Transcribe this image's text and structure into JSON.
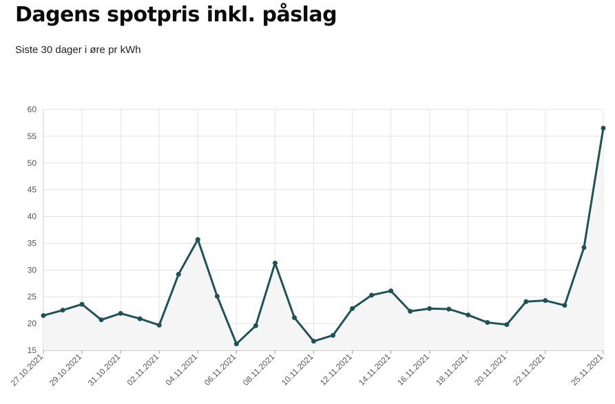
{
  "header": {
    "title": "Dagens spotpris inkl. påslag",
    "subtitle": "Siste 30 dager i øre pr kWh"
  },
  "colors": {
    "line": "#1f5257",
    "area": "#f5f5f5",
    "grid": "#e3e3e3"
  },
  "chart_data": {
    "type": "area",
    "title": "",
    "xlabel": "",
    "ylabel": "",
    "ylim": [
      15,
      60
    ],
    "yticks": [
      15,
      20,
      25,
      30,
      35,
      40,
      45,
      50,
      55,
      60
    ],
    "grid": true,
    "legend": "none",
    "x": [
      "27.10.2021",
      "28.10.2021",
      "29.10.2021",
      "30.10.2021",
      "31.10.2021",
      "01.11.2021",
      "02.11.2021",
      "03.11.2021",
      "04.11.2021",
      "05.11.2021",
      "06.11.2021",
      "07.11.2021",
      "08.11.2021",
      "09.11.2021",
      "10.11.2021",
      "11.11.2021",
      "12.11.2021",
      "13.11.2021",
      "14.11.2021",
      "15.11.2021",
      "16.11.2021",
      "17.11.2021",
      "18.11.2021",
      "19.11.2021",
      "20.11.2021",
      "21.11.2021",
      "22.11.2021",
      "23.11.2021",
      "24.11.2021",
      "25.11.2021"
    ],
    "xtick_labels": [
      "27.10.2021",
      "29.10.2021",
      "31.10.2021",
      "02.11.2021",
      "04.11.2021",
      "06.11.2021",
      "08.11.2021",
      "10.11.2021",
      "12.11.2021",
      "14.11.2021",
      "16.11.2021",
      "18.11.2021",
      "20.11.2021",
      "22.11.2021",
      "25.11.2021"
    ],
    "series": [
      {
        "values": [
          21.5,
          22.5,
          23.6,
          20.7,
          21.9,
          20.9,
          19.7,
          29.2,
          35.7,
          25.1,
          16.2,
          19.6,
          31.3,
          21.1,
          16.7,
          17.8,
          22.8,
          25.3,
          26.1,
          22.3,
          22.8,
          22.7,
          21.6,
          20.2,
          19.8,
          24.1,
          24.3,
          23.4,
          34.2,
          56.5
        ]
      }
    ]
  }
}
